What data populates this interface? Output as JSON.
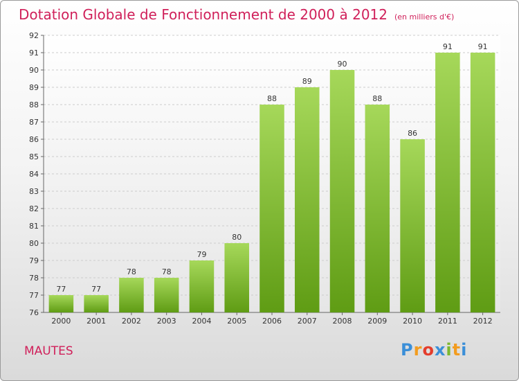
{
  "title": "Dotation Globale de Fonctionnement de 2000 à 2012",
  "unit": "(en milliers d'€)",
  "commune": "MAUTES",
  "logo": {
    "letters": [
      "P",
      "r",
      "o",
      "x",
      "i",
      "t",
      "i"
    ],
    "colors": [
      "#3b8fd8",
      "#f29c1f",
      "#e43d2c",
      "#3b8fd8",
      "#7cb82f",
      "#f29c1f",
      "#3b8fd8"
    ]
  },
  "colors": {
    "bar_top": "#a6d85a",
    "bar_bottom": "#5f9c14",
    "title": "#d0205a",
    "grid": "#cccccc"
  },
  "chart_data": {
    "type": "bar",
    "categories": [
      "2000",
      "2001",
      "2002",
      "2003",
      "2004",
      "2005",
      "2006",
      "2007",
      "2008",
      "2009",
      "2010",
      "2011",
      "2012"
    ],
    "values": [
      77,
      77,
      78,
      78,
      79,
      80,
      88,
      89,
      90,
      88,
      86,
      91,
      91
    ],
    "ylim": [
      76,
      92
    ],
    "yticks": [
      76,
      77,
      78,
      79,
      80,
      81,
      82,
      83,
      84,
      85,
      86,
      87,
      88,
      89,
      90,
      91,
      92
    ],
    "grid": true,
    "data_labels": true
  }
}
